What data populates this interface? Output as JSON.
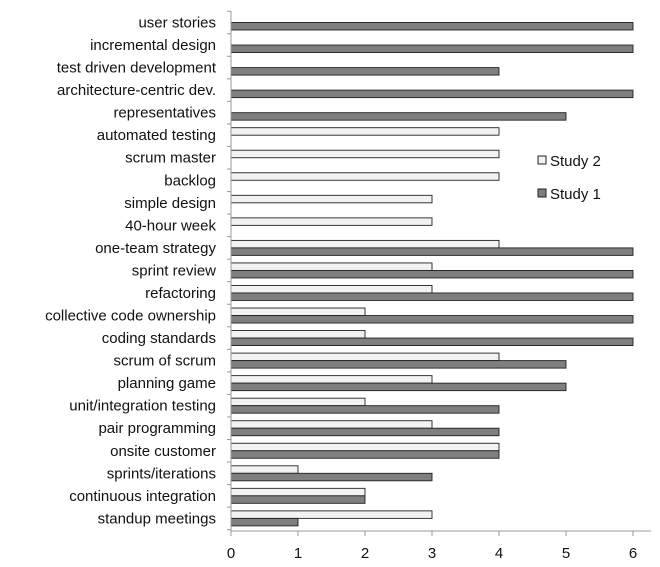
{
  "chart_data": {
    "type": "bar",
    "orientation": "horizontal",
    "title": "",
    "xlabel": "",
    "ylabel": "",
    "xlim": [
      0,
      6
    ],
    "xticks": [
      "0",
      "1",
      "2",
      "3",
      "4",
      "5",
      "6"
    ],
    "grid": false,
    "legend_position": "right",
    "categories": [
      "user stories",
      "incremental design",
      "test driven development",
      "architecture-centric dev.",
      "representatives",
      "automated testing",
      "scrum master",
      "backlog",
      "simple design",
      "40-hour week",
      "one-team strategy",
      "sprint review",
      "refactoring",
      "collective code ownership",
      "coding standards",
      "scrum of scrum",
      "planning game",
      "unit/integration testing",
      "pair programming",
      "onsite customer",
      "sprints/iterations",
      "continuous integration",
      "standup meetings"
    ],
    "series": [
      {
        "name": "Study 2",
        "color": "#f2f2f2",
        "values": [
          0,
          0,
          0,
          0,
          0,
          4,
          4,
          4,
          3,
          3,
          4,
          3,
          3,
          2,
          2,
          4,
          3,
          2,
          3,
          4,
          1,
          2,
          3
        ]
      },
      {
        "name": "Study 1",
        "color": "#7f7f7f",
        "values": [
          6,
          6,
          4,
          6,
          5,
          0,
          0,
          0,
          0,
          0,
          6,
          6,
          6,
          6,
          6,
          5,
          5,
          4,
          4,
          4,
          3,
          2,
          1
        ]
      }
    ]
  }
}
